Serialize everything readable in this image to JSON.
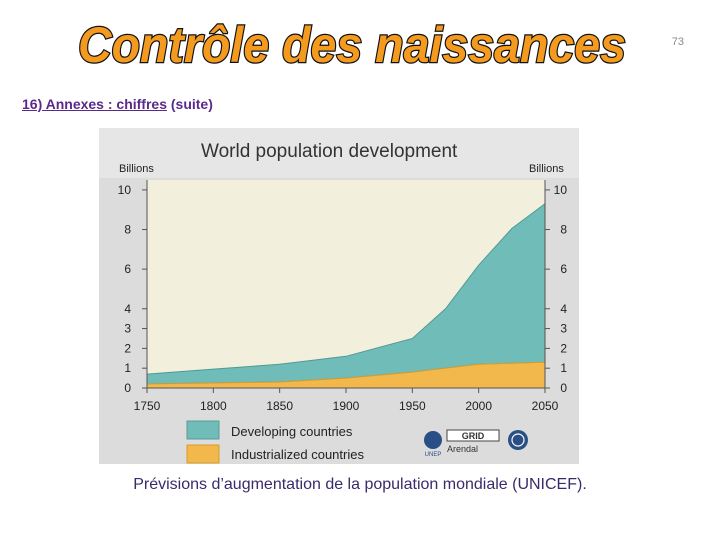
{
  "page": {
    "number": "73",
    "title": "Contrôle des naissances",
    "subtitle_part1": "16) Annexes : chiffres",
    "subtitle_part2": " (suite)",
    "caption": "Prévisions d’augmentation de la population mondiale (UNICEF)."
  },
  "chart_data": {
    "type": "area",
    "title": "World population development",
    "ylabel_left": "Billions",
    "ylabel_right": "Billions",
    "x": [
      1750,
      1800,
      1850,
      1900,
      1950,
      1975,
      2000,
      2025,
      2050
    ],
    "xticks": [
      "1750",
      "1800",
      "1850",
      "1900",
      "1950",
      "2000",
      "2050"
    ],
    "yticks_left": [
      "0",
      "1",
      "2",
      "3",
      "4",
      "6",
      "8",
      "10"
    ],
    "yticks_right": [
      "0",
      "1",
      "2",
      "3",
      "4",
      "6",
      "8",
      "10"
    ],
    "ylim": [
      0,
      10.5
    ],
    "series": [
      {
        "name": "Industrialized countries",
        "values": [
          0.2,
          0.25,
          0.3,
          0.5,
          0.8,
          1.0,
          1.2,
          1.25,
          1.3
        ],
        "color": "#f2b84b"
      },
      {
        "name": "Developing countries",
        "values": [
          0.5,
          0.7,
          0.9,
          1.1,
          1.7,
          3.0,
          5.0,
          6.8,
          8.0
        ],
        "color": "#6fbcb8"
      }
    ],
    "logos": [
      "UNEP",
      "GRID Arendal",
      "UN"
    ],
    "logo_text": {
      "grid": "GRID",
      "arendal": "Arendal",
      "unep": "UNEP"
    }
  }
}
